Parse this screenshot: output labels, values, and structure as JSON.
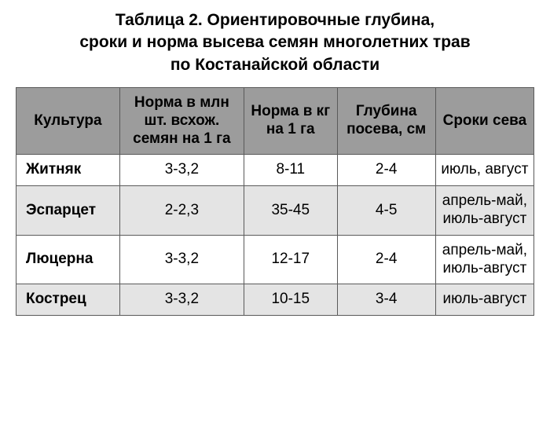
{
  "title": {
    "line1": "Таблица 2. Ориентировочные глубина,",
    "line2": "сроки и норма высева семян многолетних трав",
    "line3": "по Костанайской области"
  },
  "columns": [
    "Культура",
    "Норма в млн шт. всхож. семян на 1 га",
    "Норма в кг на 1 га",
    "Глубина посева, см",
    "Сроки сева"
  ],
  "rows": [
    {
      "crop": "Житняк",
      "norm_mln": "3-3,2",
      "norm_kg": "8-11",
      "depth": "2-4",
      "timing": "июль, август"
    },
    {
      "crop": "Эспарцет",
      "norm_mln": "2-2,3",
      "norm_kg": "35-45",
      "depth": "4-5",
      "timing": "апрель-май, июль-август"
    },
    {
      "crop": "Люцерна",
      "norm_mln": "3-3,2",
      "norm_kg": "12-17",
      "depth": "2-4",
      "timing": "апрель-май, июль-август"
    },
    {
      "crop": "Кострец",
      "norm_mln": "3-3,2",
      "norm_kg": "10-15",
      "depth": "3-4",
      "timing": "июль-август"
    }
  ],
  "style": {
    "type": "table",
    "header_bg": "#9c9c9c",
    "row_bg_odd": "#ffffff",
    "row_bg_even": "#e4e4e4",
    "border_color": "#5a5a5a",
    "text_color": "#000000",
    "page_bg": "#ffffff",
    "title_fontsize": 21,
    "cell_fontsize": 19,
    "title_weight": "bold",
    "crop_weight": "bold",
    "col_widths_pct": [
      20,
      24,
      18,
      19,
      19
    ]
  }
}
